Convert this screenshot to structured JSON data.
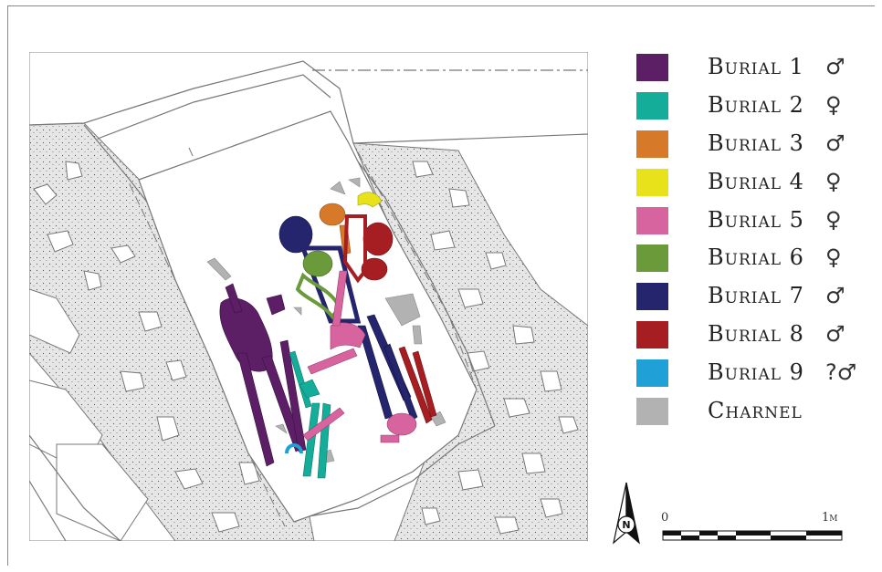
{
  "legend": [
    {
      "label": "Burial 1",
      "color": "#5c1f66",
      "sex": "♂"
    },
    {
      "label": "Burial 2",
      "color": "#14ad9a",
      "sex": "♀"
    },
    {
      "label": "Burial 3",
      "color": "#d67a2a",
      "sex": "♂"
    },
    {
      "label": "Burial 4",
      "color": "#e8e21a",
      "sex": "♀"
    },
    {
      "label": "Burial 5",
      "color": "#d7649e",
      "sex": "♀"
    },
    {
      "label": "Burial 6",
      "color": "#6a9a3a",
      "sex": "♀"
    },
    {
      "label": "Burial 7",
      "color": "#25256e",
      "sex": "♂"
    },
    {
      "label": "Burial 8",
      "color": "#a61e22",
      "sex": "♂"
    },
    {
      "label": "Burial 9",
      "color": "#1fa0d6",
      "sex": "?♂"
    },
    {
      "label": "Charnel",
      "color": "#b2b2b2",
      "sex": ""
    }
  ],
  "north": {
    "letter": "N"
  },
  "scale_bar": {
    "start": "0",
    "end": "1m"
  },
  "colors": {
    "stone_fill": "#e3e3e3",
    "outline": "#7a7a7a"
  }
}
